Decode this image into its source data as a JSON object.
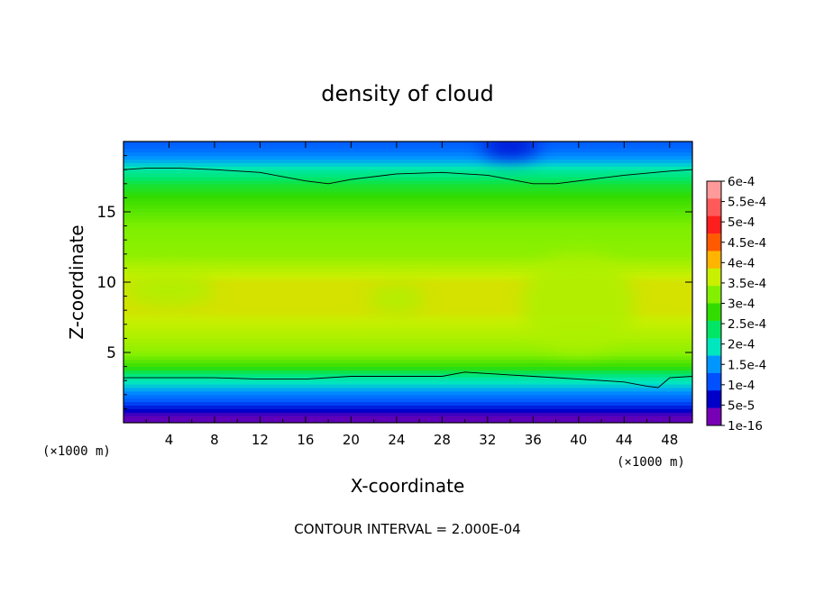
{
  "chart_data": {
    "type": "heatmap",
    "title": "density of cloud",
    "xlabel": "X-coordinate",
    "ylabel": "Z-coordinate",
    "x_unit_label": "(×1000 m)",
    "z_unit_label": "(×1000 m)",
    "footer": "CONTOUR INTERVAL = 2.000E-04",
    "xlim": [
      0,
      50
    ],
    "ylim": [
      0,
      20
    ],
    "x_ticks": [
      4,
      8,
      12,
      16,
      20,
      24,
      28,
      32,
      36,
      40,
      44,
      48
    ],
    "y_ticks": [
      5,
      10,
      15
    ],
    "colorbar": {
      "labels": [
        "6e-4",
        "5.5e-4",
        "5e-4",
        "4.5e-4",
        "4e-4",
        "3.5e-4",
        "3e-4",
        "2.5e-4",
        "2e-4",
        "1.5e-4",
        "1e-4",
        "5e-5",
        "1e-16"
      ],
      "colors": [
        "#ff9a9a",
        "#ff5a5a",
        "#ff1e1e",
        "#ff5a00",
        "#ffb400",
        "#c8f000",
        "#82f000",
        "#32dc00",
        "#00e664",
        "#00e6be",
        "#0096ff",
        "#0050ff",
        "#0000c8",
        "#7800b4"
      ]
    },
    "profile": {
      "z": [
        0.5,
        0.8,
        1.2,
        1.6,
        2.0,
        2.4,
        2.8,
        3.2,
        4.0,
        5.0,
        6.0,
        8.0,
        10.0,
        12.0,
        14.0,
        16.0,
        17.0,
        17.5,
        18.0,
        18.5,
        19.0,
        19.5,
        20.0
      ],
      "value": [
        1e-05,
        4e-05,
        7e-05,
        0.0001,
        0.00012,
        0.00015,
        0.00018,
        0.0002,
        0.00028,
        0.00033,
        0.00035,
        0.00038,
        0.00038,
        0.00033,
        0.00032,
        0.00028,
        0.00025,
        0.00022,
        0.0002,
        0.00016,
        0.00013,
        0.00011,
        0.0001
      ]
    },
    "contour_lines": [
      {
        "level": "2e-4",
        "x": [
          0,
          2,
          5,
          8,
          12,
          16,
          18,
          20,
          24,
          28,
          32,
          36,
          38,
          40,
          44,
          48,
          50
        ],
        "z": [
          18.0,
          18.1,
          18.1,
          18.0,
          17.8,
          17.2,
          17.0,
          17.3,
          17.7,
          17.8,
          17.6,
          17.0,
          17.0,
          17.2,
          17.6,
          17.9,
          18.0
        ]
      },
      {
        "level": "1.5e-4",
        "x": [
          0,
          4,
          8,
          12,
          16,
          20,
          24,
          28,
          30,
          32,
          36,
          40,
          44,
          46,
          47,
          48,
          50
        ],
        "z": [
          3.2,
          3.2,
          3.2,
          3.1,
          3.1,
          3.3,
          3.3,
          3.3,
          3.6,
          3.5,
          3.3,
          3.1,
          2.9,
          2.6,
          2.5,
          3.2,
          3.3
        ]
      }
    ],
    "highlights": [
      {
        "x": 40,
        "z": 8.5,
        "rx": 5.0,
        "rz": 3.5,
        "level": "3.5e-4"
      },
      {
        "x": 24,
        "z": 8.8,
        "rx": 2.5,
        "rz": 1.0,
        "level": "3.5e-4"
      },
      {
        "x": 4,
        "z": 9.5,
        "rx": 4.0,
        "rz": 1.2,
        "level": "3.5e-4"
      },
      {
        "x": 34,
        "z": 19.6,
        "rx": 2.5,
        "rz": 0.8,
        "level": "5e-5"
      }
    ]
  }
}
